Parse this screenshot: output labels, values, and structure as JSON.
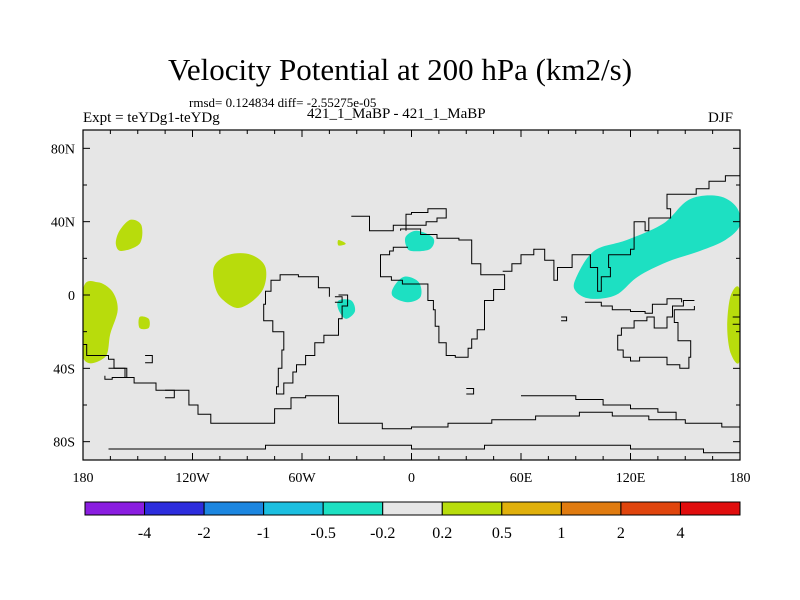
{
  "chart_data": {
    "type": "heatmap",
    "title": "Velocity Potential at 200 hPa (km2/s)",
    "stats_text": "rmsd= 0.124834 diff= -2.55275e-05",
    "left_label": "Expt = teYDg1-teYDg",
    "center_label": "421_1_MaBP - 421_1_MaBP",
    "right_label": "DJF",
    "x_ticks": [
      {
        "value": -180,
        "label": "180"
      },
      {
        "value": -120,
        "label": "120W"
      },
      {
        "value": -60,
        "label": "60W"
      },
      {
        "value": 0,
        "label": "0"
      },
      {
        "value": 60,
        "label": "60E"
      },
      {
        "value": 120,
        "label": "120E"
      },
      {
        "value": 180,
        "label": "180"
      }
    ],
    "y_ticks": [
      {
        "value": 80,
        "label": "80N"
      },
      {
        "value": 40,
        "label": "40N"
      },
      {
        "value": 0,
        "label": "0"
      },
      {
        "value": -40,
        "label": "40S"
      },
      {
        "value": -80,
        "label": "80S"
      }
    ],
    "xlim": [
      -180,
      180
    ],
    "ylim": [
      -90,
      90
    ],
    "background_bin_color": "#e6e6e6",
    "colorbar": {
      "colors": [
        "#8a1de0",
        "#2d2ddd",
        "#1c86e0",
        "#1cbfe0",
        "#1de0c2",
        "#e6e6e6",
        "#b8dc0c",
        "#e0b00c",
        "#e07b10",
        "#e0450d",
        "#e00d0d"
      ],
      "labels": [
        "-4",
        "-2",
        "-1",
        "-0.5",
        "-0.2",
        "0.2",
        "0.5",
        "1",
        "2",
        "4"
      ]
    },
    "regions": [
      {
        "name": "positive-anomaly-east-pacific-north",
        "level": "0.2 to 0.5",
        "polygon": [
          [
            -160,
            35
          ],
          [
            -154,
            41
          ],
          [
            -148,
            38
          ],
          [
            -149,
            28
          ],
          [
            -159,
            24
          ],
          [
            -162,
            28
          ]
        ]
      },
      {
        "name": "positive-anomaly-central-pacific",
        "level": "0.2 to 0.5",
        "polygon": [
          [
            -108,
            16
          ],
          [
            -100,
            22
          ],
          [
            -88,
            22
          ],
          [
            -80,
            15
          ],
          [
            -82,
            2
          ],
          [
            -94,
            -7
          ],
          [
            -104,
            -2
          ],
          [
            -108,
            6
          ]
        ]
      },
      {
        "name": "positive-anomaly-west-edge",
        "level": "0.2 to 0.5",
        "polygon": [
          [
            -180,
            3
          ],
          [
            -172,
            7
          ],
          [
            -164,
            2
          ],
          [
            -161,
            -8
          ],
          [
            -165,
            -21
          ],
          [
            -168,
            -34
          ],
          [
            -180,
            -34
          ]
        ]
      },
      {
        "name": "positive-anomaly-small-south-pacific",
        "level": "0.2 to 0.5",
        "polygon": [
          [
            -149,
            -12
          ],
          [
            -144,
            -13
          ],
          [
            -144,
            -18
          ],
          [
            -149,
            -18
          ]
        ]
      },
      {
        "name": "positive-anomaly-small-atlantic",
        "level": "0.2 to 0.5",
        "polygon": [
          [
            -40,
            30
          ],
          [
            -36,
            28
          ],
          [
            -40,
            27
          ]
        ]
      },
      {
        "name": "positive-anomaly-east-edge",
        "level": "0.2 to 0.5",
        "polygon": [
          [
            175,
            0
          ],
          [
            180,
            2
          ],
          [
            180,
            -35
          ],
          [
            175,
            -32
          ],
          [
            173,
            -17
          ]
        ]
      },
      {
        "name": "negative-anomaly-west-pacific",
        "level": "-0.5 to -0.2",
        "polygon": [
          [
            90,
            9
          ],
          [
            100,
            24
          ],
          [
            118,
            30
          ],
          [
            138,
            39
          ],
          [
            152,
            52
          ],
          [
            168,
            54
          ],
          [
            178,
            48
          ],
          [
            180,
            38
          ],
          [
            172,
            30
          ],
          [
            158,
            24
          ],
          [
            140,
            18
          ],
          [
            124,
            10
          ],
          [
            112,
            0
          ],
          [
            98,
            -2
          ],
          [
            90,
            2
          ]
        ]
      },
      {
        "name": "negative-anomaly-africa",
        "level": "-0.5 to -0.2",
        "polygon": [
          [
            -10,
            4
          ],
          [
            -4,
            10
          ],
          [
            4,
            7
          ],
          [
            5,
            -1
          ],
          [
            -2,
            -4
          ],
          [
            -10,
            -1
          ]
        ]
      },
      {
        "name": "negative-anomaly-mediterranean",
        "level": "-0.5 to -0.2",
        "polygon": [
          [
            -3,
            32
          ],
          [
            3,
            35
          ],
          [
            12,
            31
          ],
          [
            10,
            25
          ],
          [
            0,
            24
          ],
          [
            -3,
            27
          ]
        ]
      },
      {
        "name": "negative-anomaly-south-america",
        "level": "-0.5 to -0.2",
        "polygon": [
          [
            -40,
            -3
          ],
          [
            -33,
            -3
          ],
          [
            -31,
            -9
          ],
          [
            -36,
            -13
          ],
          [
            -40,
            -8
          ]
        ]
      }
    ],
    "annotations": {
      "coastline_description": "thin black continental outlines drawn over the map"
    }
  }
}
